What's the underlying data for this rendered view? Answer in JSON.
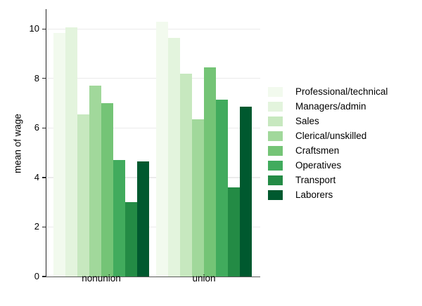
{
  "chart_data": {
    "type": "bar",
    "title": "",
    "ylabel": "mean of wage",
    "xlabel": "",
    "categories": [
      "nonunion",
      "union"
    ],
    "series": [
      {
        "name": "Professional/technical",
        "color": "#f2faee",
        "values": [
          9.85,
          10.3
        ]
      },
      {
        "name": "Managers/admin",
        "color": "#e3f4dd",
        "values": [
          10.05,
          9.65
        ]
      },
      {
        "name": "Sales",
        "color": "#c7e8bf",
        "values": [
          6.55,
          8.2
        ]
      },
      {
        "name": "Clerical/unskilled",
        "color": "#a1d89b",
        "values": [
          7.7,
          6.35
        ]
      },
      {
        "name": "Craftsmen",
        "color": "#74c476",
        "values": [
          7.0,
          8.45
        ]
      },
      {
        "name": "Operatives",
        "color": "#41ab5d",
        "values": [
          4.7,
          7.15
        ]
      },
      {
        "name": "Transport",
        "color": "#238b45",
        "values": [
          3.0,
          3.6
        ]
      },
      {
        "name": "Laborers",
        "color": "#00592f",
        "values": [
          4.65,
          6.85
        ]
      }
    ],
    "yticks": [
      0,
      2,
      4,
      6,
      8,
      10
    ],
    "ylim": [
      0,
      10.8
    ],
    "grid": true,
    "legend_position": "right",
    "axis_color": "#262626",
    "gridline_color": "#ebebeb"
  }
}
